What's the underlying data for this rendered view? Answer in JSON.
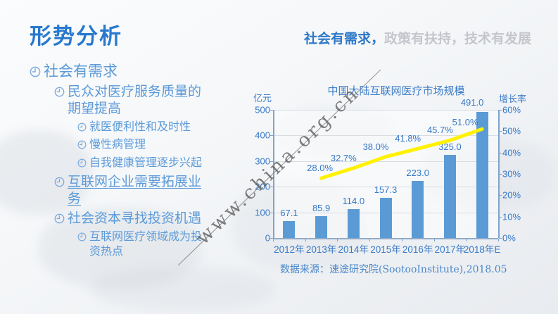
{
  "slide": {
    "title": "形势分析",
    "subtitle": {
      "highlight": "社会有需求，",
      "rest": "政策有扶持，技术有发展"
    }
  },
  "bullets": [
    {
      "level": 1,
      "text": "社会有需求"
    },
    {
      "level": 2,
      "text": "民众对医疗服务质量的期望提高"
    },
    {
      "level": 3,
      "text": "就医便利性和及时性"
    },
    {
      "level": 3,
      "text": "慢性病管理"
    },
    {
      "level": 3,
      "text": "自我健康管理逐步兴起"
    },
    {
      "level": 2,
      "text": "互联网企业需要拓展业务",
      "underline": true
    },
    {
      "level": 2,
      "text": "社会资本寻找投资机遇"
    },
    {
      "level": 3,
      "text": "互联网医疗领域成为投资热点"
    }
  ],
  "chart_data": {
    "type": "bar+line",
    "title": "中国大陆互联网医疗市场规模",
    "left_axis_label": "亿元",
    "right_axis_label": "增长率",
    "categories": [
      "2012年",
      "2013年",
      "2014年",
      "2015年",
      "2016年",
      "2017年",
      "2018年E"
    ],
    "series": [
      {
        "name": "市场规模(亿元)",
        "type": "bar",
        "values": [
          67.1,
          85.9,
          114.0,
          157.3,
          223.0,
          325.0,
          491.0
        ],
        "labels": [
          "67.1",
          "85.9",
          "114.0",
          "157.3",
          "223.0",
          "325.0",
          "491.0"
        ]
      },
      {
        "name": "增长率",
        "type": "line",
        "values": [
          null,
          28.0,
          32.7,
          38.0,
          41.8,
          45.7,
          51.0
        ],
        "labels": [
          null,
          "28.0%",
          "32.7%",
          "38.0%",
          "41.8%",
          "45.7%",
          "51.0%"
        ]
      }
    ],
    "left_axis": {
      "ticks": [
        "0",
        "100",
        "200",
        "300",
        "400",
        "500"
      ],
      "lim": [
        0,
        500
      ]
    },
    "right_axis": {
      "ticks": [
        "0%",
        "10%",
        "20%",
        "30%",
        "40%",
        "50%",
        "60%"
      ],
      "lim": [
        0,
        60
      ]
    },
    "grid": true,
    "legend": "none",
    "colors": {
      "bar": "#5B9BD5",
      "line": "#FFF200",
      "text": "#3579C8"
    }
  },
  "watermark": "www.china.org.cn",
  "source": "数据来源：速途研究院(SootooInstitute),2018.05"
}
